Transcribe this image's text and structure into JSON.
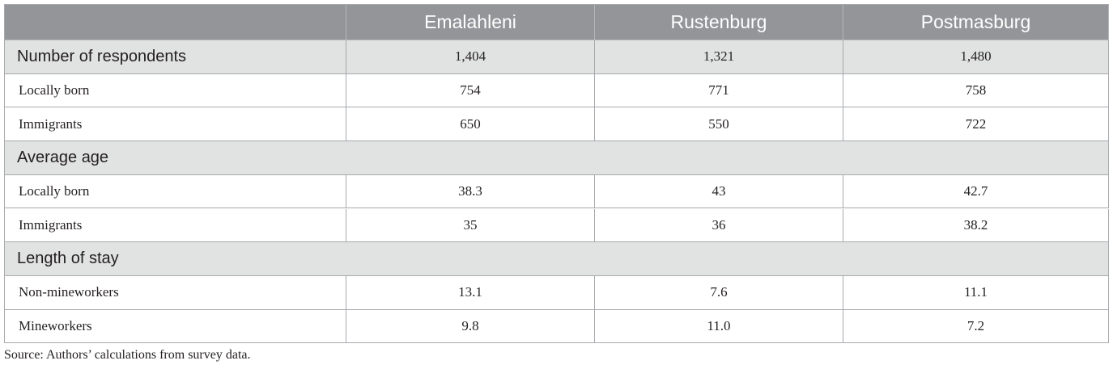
{
  "table": {
    "columns": [
      "Emalahleni",
      "Rustenburg",
      "Postmasburg"
    ],
    "groups": [
      {
        "title": "Number of respondents",
        "values": [
          "1,404",
          "1,321",
          "1,480"
        ],
        "rows": [
          {
            "label": "Locally born",
            "values": [
              "754",
              "771",
              "758"
            ]
          },
          {
            "label": "Immigrants",
            "values": [
              "650",
              "550",
              "722"
            ]
          }
        ]
      },
      {
        "title": "Average age",
        "rows": [
          {
            "label": "Locally born",
            "values": [
              "38.3",
              "43",
              "42.7"
            ]
          },
          {
            "label": "Immigrants",
            "values": [
              "35",
              "36",
              "38.2"
            ]
          }
        ]
      },
      {
        "title": "Length of stay",
        "rows": [
          {
            "label": "Non-mineworkers",
            "values": [
              "13.1",
              "7.6",
              "11.1"
            ]
          },
          {
            "label": "Mineworkers",
            "values": [
              "9.8",
              "11.0",
              "7.2"
            ]
          }
        ]
      }
    ],
    "source": "Source: Authors’ calculations from survey data."
  }
}
